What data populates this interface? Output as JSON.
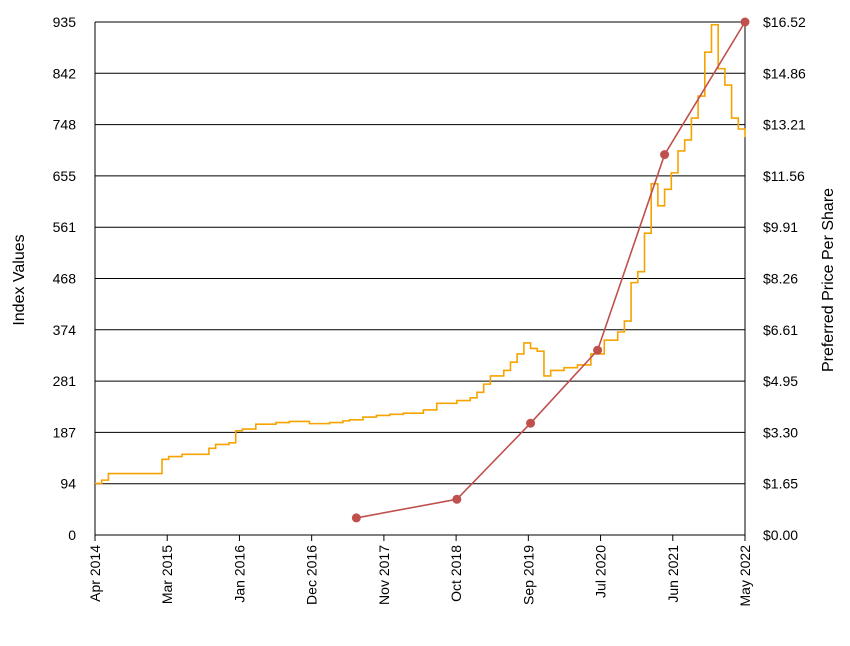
{
  "chart_data": {
    "type": "line",
    "title": "",
    "left_axis": {
      "label": "Index Values",
      "ylim": [
        0,
        935
      ],
      "ticks": [
        "0",
        "94",
        "187",
        "281",
        "374",
        "468",
        "561",
        "655",
        "748",
        "842",
        "935"
      ]
    },
    "right_axis": {
      "label": "Preferred Price Per Share",
      "ylim": [
        0,
        16.52
      ],
      "ticks": [
        "$0.00",
        "$1.65",
        "$3.30",
        "$4.95",
        "$6.61",
        "$8.26",
        "$9.91",
        "$11.56",
        "$13.21",
        "$14.86",
        "$16.52"
      ]
    },
    "x_axis": {
      "range": [
        "2014-04",
        "2022-05"
      ],
      "ticks": [
        "Apr 2014",
        "Mar 2015",
        "Jan 2016",
        "Dec 2016",
        "Nov 2017",
        "Oct 2018",
        "Sep 2019",
        "Jul 2020",
        "Jun 2021",
        "May 2022"
      ]
    },
    "grid": "horizontal",
    "series": [
      {
        "axis": "left",
        "style": "step-line",
        "color": "#f5a300",
        "points": [
          [
            "2014-04",
            94
          ],
          [
            "2014-05",
            100
          ],
          [
            "2014-06",
            112
          ],
          [
            "2015-01",
            112
          ],
          [
            "2015-02",
            138
          ],
          [
            "2015-03",
            143
          ],
          [
            "2015-05",
            147
          ],
          [
            "2015-07",
            147
          ],
          [
            "2015-09",
            158
          ],
          [
            "2015-10",
            165
          ],
          [
            "2015-12",
            168
          ],
          [
            "2016-01",
            190
          ],
          [
            "2016-02",
            193
          ],
          [
            "2016-04",
            202
          ],
          [
            "2016-06",
            202
          ],
          [
            "2016-07",
            205
          ],
          [
            "2016-09",
            207
          ],
          [
            "2016-11",
            207
          ],
          [
            "2016-12",
            203
          ],
          [
            "2017-02",
            203
          ],
          [
            "2017-03",
            205
          ],
          [
            "2017-05",
            208
          ],
          [
            "2017-06",
            210
          ],
          [
            "2017-08",
            215
          ],
          [
            "2017-10",
            218
          ],
          [
            "2017-12",
            220
          ],
          [
            "2018-02",
            222
          ],
          [
            "2018-04",
            222
          ],
          [
            "2018-05",
            228
          ],
          [
            "2018-07",
            240
          ],
          [
            "2018-10",
            245
          ],
          [
            "2018-12",
            250
          ],
          [
            "2019-01",
            260
          ],
          [
            "2019-02",
            275
          ],
          [
            "2019-03",
            290
          ],
          [
            "2019-05",
            300
          ],
          [
            "2019-06",
            315
          ],
          [
            "2019-07",
            330
          ],
          [
            "2019-08",
            350
          ],
          [
            "2019-09",
            340
          ],
          [
            "2019-10",
            335
          ],
          [
            "2019-11",
            290
          ],
          [
            "2019-12",
            300
          ],
          [
            "2020-02",
            305
          ],
          [
            "2020-04",
            310
          ],
          [
            "2020-06",
            330
          ],
          [
            "2020-08",
            355
          ],
          [
            "2020-10",
            370
          ],
          [
            "2020-11",
            390
          ],
          [
            "2020-12",
            460
          ],
          [
            "2021-01",
            480
          ],
          [
            "2021-02",
            550
          ],
          [
            "2021-03",
            640
          ],
          [
            "2021-04",
            600
          ],
          [
            "2021-05",
            630
          ],
          [
            "2021-06",
            660
          ],
          [
            "2021-07",
            700
          ],
          [
            "2021-08",
            720
          ],
          [
            "2021-09",
            760
          ],
          [
            "2021-10",
            800
          ],
          [
            "2021-11",
            880
          ],
          [
            "2021-12",
            930
          ],
          [
            "2022-01",
            850
          ],
          [
            "2022-02",
            820
          ],
          [
            "2022-03",
            760
          ],
          [
            "2022-04",
            740
          ],
          [
            "2022-05",
            725
          ]
        ]
      },
      {
        "axis": "right",
        "style": "line-with-markers",
        "color": "#c0504d",
        "points": [
          [
            "2017-07",
            0.55
          ],
          [
            "2018-10",
            1.15
          ],
          [
            "2019-09",
            3.6
          ],
          [
            "2020-07",
            5.95
          ],
          [
            "2021-05",
            12.25
          ],
          [
            "2022-05",
            16.52
          ]
        ]
      }
    ]
  }
}
